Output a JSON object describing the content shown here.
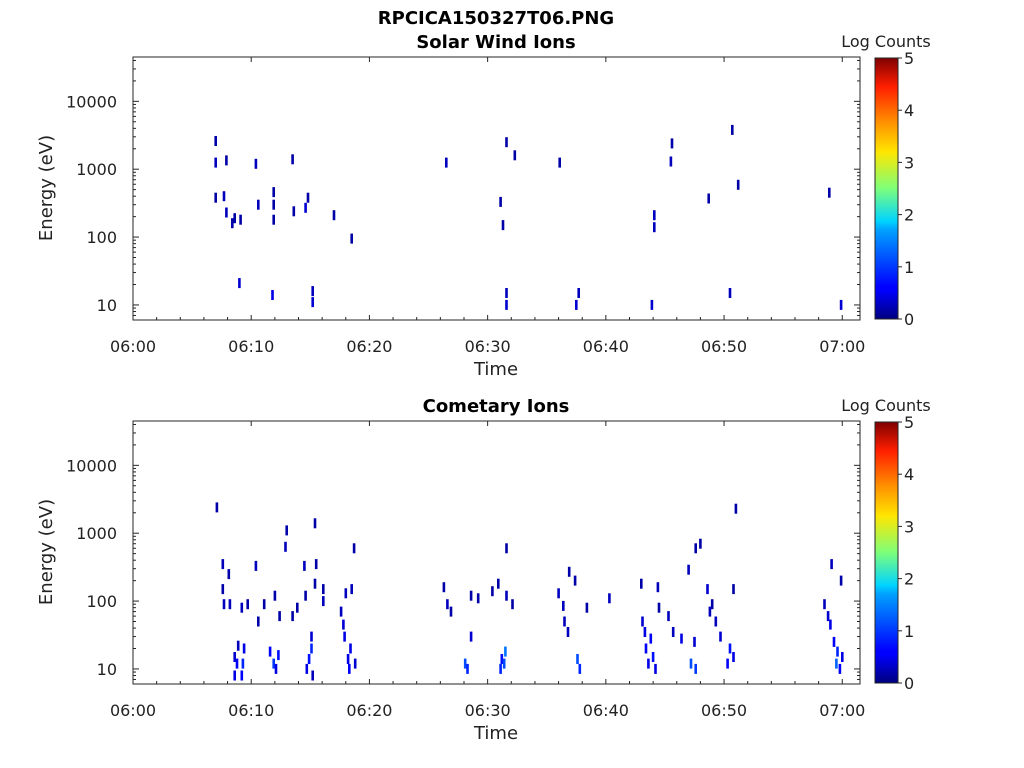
{
  "figure_title": "RPCICA150327T06.PNG",
  "chart_data": [
    {
      "type": "heatmap",
      "title": "Solar Wind Ions",
      "xlabel": "Time",
      "ylabel": "Energy (eV)",
      "x_ticks": [
        "06:00",
        "06:10",
        "06:20",
        "06:30",
        "06:40",
        "06:50",
        "07:00"
      ],
      "x_range_minutes": [
        0,
        61.5
      ],
      "y_ticks": [
        {
          "value": 10,
          "label": "10"
        },
        {
          "value": 100,
          "label": "100"
        },
        {
          "value": 1000,
          "label": "1000"
        },
        {
          "value": 10000,
          "label": "10000"
        }
      ],
      "y_range": [
        6,
        45000
      ],
      "y_scale": "log",
      "colorbar": {
        "label": "Log Counts",
        "range": [
          0,
          5
        ],
        "ticks": [
          "0",
          "1",
          "2",
          "3",
          "4",
          "5"
        ],
        "colormap": "jet"
      },
      "points": [
        [
          7.0,
          2600,
          0.2
        ],
        [
          7.0,
          1250,
          0.3
        ],
        [
          7.0,
          380,
          0.2
        ],
        [
          7.7,
          400,
          0.3
        ],
        [
          7.9,
          1350,
          0.2
        ],
        [
          7.9,
          230,
          0.3
        ],
        [
          8.4,
          160,
          0.2
        ],
        [
          8.6,
          190,
          0.2
        ],
        [
          9.0,
          21,
          0.4
        ],
        [
          9.1,
          180,
          0.2
        ],
        [
          10.4,
          1200,
          0.3
        ],
        [
          10.6,
          300,
          0.3
        ],
        [
          11.8,
          14,
          0.5
        ],
        [
          11.9,
          460,
          0.2
        ],
        [
          11.9,
          300,
          0.2
        ],
        [
          11.9,
          180,
          0.2
        ],
        [
          13.5,
          1400,
          0.2
        ],
        [
          13.6,
          240,
          0.2
        ],
        [
          14.6,
          270,
          0.4
        ],
        [
          14.8,
          380,
          0.2
        ],
        [
          15.2,
          11,
          0.4
        ],
        [
          15.2,
          16,
          0.3
        ],
        [
          17.0,
          210,
          0.2
        ],
        [
          18.5,
          95,
          0.2
        ],
        [
          26.5,
          1250,
          0.3
        ],
        [
          31.1,
          330,
          0.2
        ],
        [
          31.3,
          150,
          0.2
        ],
        [
          31.6,
          10,
          0.4
        ],
        [
          31.6,
          15,
          0.3
        ],
        [
          31.6,
          2500,
          0.2
        ],
        [
          32.3,
          1600,
          0.2
        ],
        [
          36.1,
          1250,
          0.2
        ],
        [
          37.5,
          10,
          0.4
        ],
        [
          37.7,
          15,
          0.3
        ],
        [
          43.9,
          10,
          0.4
        ],
        [
          44.1,
          140,
          0.3
        ],
        [
          44.1,
          210,
          0.3
        ],
        [
          45.5,
          1300,
          0.3
        ],
        [
          45.6,
          2400,
          0.2
        ],
        [
          48.7,
          370,
          0.2
        ],
        [
          50.5,
          15,
          0.3
        ],
        [
          50.7,
          3800,
          0.2
        ],
        [
          51.2,
          590,
          0.2
        ],
        [
          58.9,
          450,
          0.2
        ],
        [
          59.9,
          10,
          0.4
        ]
      ]
    },
    {
      "type": "heatmap",
      "title": "Cometary Ions",
      "xlabel": "Time",
      "ylabel": "Energy (eV)",
      "x_ticks": [
        "06:00",
        "06:10",
        "06:20",
        "06:30",
        "06:40",
        "06:50",
        "07:00"
      ],
      "x_range_minutes": [
        0,
        61.5
      ],
      "y_ticks": [
        {
          "value": 10,
          "label": "10"
        },
        {
          "value": 100,
          "label": "100"
        },
        {
          "value": 1000,
          "label": "1000"
        },
        {
          "value": 10000,
          "label": "10000"
        }
      ],
      "y_range": [
        6,
        45000
      ],
      "y_scale": "log",
      "colorbar": {
        "label": "Log Counts",
        "range": [
          0,
          5
        ],
        "ticks": [
          "0",
          "1",
          "2",
          "3",
          "4",
          "5"
        ],
        "colormap": "jet"
      },
      "points": [
        [
          7.1,
          2400,
          0.2
        ],
        [
          7.6,
          350,
          0.3
        ],
        [
          7.6,
          150,
          0.2
        ],
        [
          7.7,
          90,
          0.3
        ],
        [
          8.1,
          250,
          0.2
        ],
        [
          8.2,
          90,
          0.3
        ],
        [
          8.6,
          8,
          0.5
        ],
        [
          8.6,
          15,
          0.4
        ],
        [
          8.8,
          12,
          0.6
        ],
        [
          8.9,
          22,
          0.3
        ],
        [
          9.2,
          8,
          0.6
        ],
        [
          9.3,
          12,
          0.8
        ],
        [
          9.4,
          20,
          0.5
        ],
        [
          9.2,
          80,
          0.3
        ],
        [
          9.7,
          90,
          0.2
        ],
        [
          10.4,
          330,
          0.3
        ],
        [
          10.6,
          50,
          0.2
        ],
        [
          11.1,
          90,
          0.2
        ],
        [
          11.6,
          18,
          0.6
        ],
        [
          11.9,
          12,
          0.9
        ],
        [
          12.1,
          10,
          0.5
        ],
        [
          12.3,
          16,
          0.7
        ],
        [
          12.0,
          120,
          0.2
        ],
        [
          12.4,
          60,
          0.2
        ],
        [
          12.9,
          630,
          0.3
        ],
        [
          13.0,
          1100,
          0.2
        ],
        [
          13.5,
          60,
          0.2
        ],
        [
          13.9,
          80,
          0.2
        ],
        [
          14.5,
          330,
          0.3
        ],
        [
          14.6,
          120,
          0.2
        ],
        [
          14.7,
          10,
          0.5
        ],
        [
          14.9,
          14,
          0.7
        ],
        [
          15.1,
          20,
          0.8
        ],
        [
          15.1,
          30,
          0.4
        ],
        [
          15.2,
          8,
          0.3
        ],
        [
          15.4,
          1400,
          0.2
        ],
        [
          15.4,
          180,
          0.2
        ],
        [
          15.5,
          350,
          0.2
        ],
        [
          16.1,
          100,
          0.3
        ],
        [
          16.1,
          150,
          0.2
        ],
        [
          17.6,
          70,
          0.3
        ],
        [
          17.8,
          45,
          0.4
        ],
        [
          17.9,
          30,
          0.5
        ],
        [
          18.0,
          130,
          0.3
        ],
        [
          18.2,
          14,
          0.5
        ],
        [
          18.3,
          10,
          0.6
        ],
        [
          18.4,
          20,
          0.5
        ],
        [
          18.5,
          150,
          0.3
        ],
        [
          18.7,
          600,
          0.2
        ],
        [
          18.8,
          12,
          0.4
        ],
        [
          26.3,
          160,
          0.2
        ],
        [
          26.6,
          90,
          0.3
        ],
        [
          26.9,
          70,
          0.2
        ],
        [
          28.1,
          12,
          1.0
        ],
        [
          28.3,
          10,
          0.8
        ],
        [
          28.6,
          120,
          0.2
        ],
        [
          28.6,
          30,
          0.4
        ],
        [
          29.2,
          110,
          0.2
        ],
        [
          30.4,
          140,
          0.2
        ],
        [
          30.9,
          180,
          0.2
        ],
        [
          31.1,
          10,
          0.8
        ],
        [
          31.2,
          14,
          0.7
        ],
        [
          31.4,
          12,
          1.0
        ],
        [
          31.5,
          18,
          1.2
        ],
        [
          31.6,
          120,
          0.3
        ],
        [
          31.6,
          600,
          0.2
        ],
        [
          32.1,
          90,
          0.2
        ],
        [
          36.0,
          130,
          0.3
        ],
        [
          36.4,
          85,
          0.3
        ],
        [
          36.5,
          50,
          0.3
        ],
        [
          36.8,
          35,
          0.3
        ],
        [
          36.9,
          270,
          0.2
        ],
        [
          37.4,
          200,
          0.2
        ],
        [
          37.6,
          14,
          1.0
        ],
        [
          37.8,
          10,
          0.8
        ],
        [
          38.4,
          80,
          0.2
        ],
        [
          40.3,
          110,
          0.3
        ],
        [
          43.0,
          180,
          0.2
        ],
        [
          43.1,
          50,
          0.4
        ],
        [
          43.3,
          35,
          0.5
        ],
        [
          43.4,
          20,
          0.6
        ],
        [
          43.6,
          12,
          0.5
        ],
        [
          43.8,
          28,
          0.6
        ],
        [
          44.0,
          15,
          0.7
        ],
        [
          44.2,
          10,
          0.5
        ],
        [
          44.4,
          160,
          0.3
        ],
        [
          44.5,
          80,
          0.2
        ],
        [
          45.3,
          60,
          0.3
        ],
        [
          45.7,
          35,
          0.3
        ],
        [
          46.4,
          28,
          0.5
        ],
        [
          47.0,
          290,
          0.3
        ],
        [
          47.2,
          12,
          1.0
        ],
        [
          47.5,
          25,
          0.4
        ],
        [
          47.6,
          10,
          0.9
        ],
        [
          47.6,
          600,
          0.2
        ],
        [
          48.0,
          700,
          0.2
        ],
        [
          48.6,
          150,
          0.4
        ],
        [
          48.8,
          70,
          0.3
        ],
        [
          49.0,
          90,
          0.2
        ],
        [
          49.3,
          50,
          0.3
        ],
        [
          49.7,
          30,
          0.4
        ],
        [
          50.3,
          12,
          0.6
        ],
        [
          50.5,
          20,
          0.7
        ],
        [
          50.8,
          15,
          0.5
        ],
        [
          50.8,
          150,
          0.2
        ],
        [
          51.0,
          2300,
          0.2
        ],
        [
          58.5,
          90,
          0.3
        ],
        [
          58.8,
          60,
          0.4
        ],
        [
          59.0,
          45,
          0.5
        ],
        [
          59.1,
          350,
          0.3
        ],
        [
          59.3,
          25,
          0.6
        ],
        [
          59.5,
          12,
          1.1
        ],
        [
          59.6,
          18,
          0.8
        ],
        [
          59.8,
          10,
          0.6
        ],
        [
          59.9,
          200,
          0.2
        ],
        [
          60.0,
          15,
          0.5
        ]
      ]
    }
  ]
}
